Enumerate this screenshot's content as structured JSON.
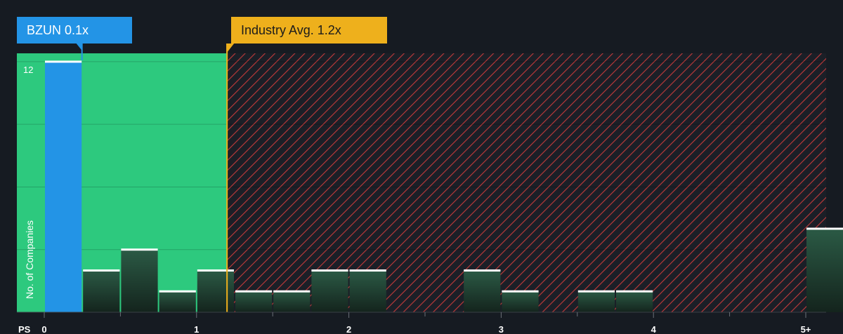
{
  "chart_data": {
    "type": "bar",
    "xlabel": "PS",
    "ylabel": "No. of Companies",
    "x_ticks": [
      "0",
      "1",
      "2",
      "3",
      "4",
      "5+"
    ],
    "y_ticks": [
      "12"
    ],
    "ylim": [
      0,
      12.4
    ],
    "bin_width": 0.25,
    "bins": [
      {
        "x": 0.0,
        "value": 12
      },
      {
        "x": 0.25,
        "value": 2
      },
      {
        "x": 0.5,
        "value": 3
      },
      {
        "x": 0.75,
        "value": 1
      },
      {
        "x": 1.0,
        "value": 2
      },
      {
        "x": 1.25,
        "value": 1
      },
      {
        "x": 1.5,
        "value": 1
      },
      {
        "x": 1.75,
        "value": 2
      },
      {
        "x": 2.0,
        "value": 2
      },
      {
        "x": 2.25,
        "value": 0
      },
      {
        "x": 2.5,
        "value": 0
      },
      {
        "x": 2.75,
        "value": 2
      },
      {
        "x": 3.0,
        "value": 1
      },
      {
        "x": 3.25,
        "value": 0
      },
      {
        "x": 3.5,
        "value": 1
      },
      {
        "x": 3.75,
        "value": 1
      },
      {
        "x": 4.0,
        "value": 0
      },
      {
        "x": 4.25,
        "value": 0
      },
      {
        "x": 4.5,
        "value": 0
      },
      {
        "x": 4.75,
        "value": 0
      },
      {
        "x": 5.0,
        "value": 4
      }
    ],
    "company": {
      "label": "BZUN 0.1x",
      "value": 0.1
    },
    "industry_avg": {
      "label": "Industry Avg. 1.2x",
      "value": 1.2
    },
    "grid": true
  },
  "colors": {
    "background": "#161b22",
    "company": "#2394e6",
    "industry": "#eeb01c",
    "undervalued_zone": "#2dc97e",
    "overvalued_hatch": "#c23a3a"
  }
}
